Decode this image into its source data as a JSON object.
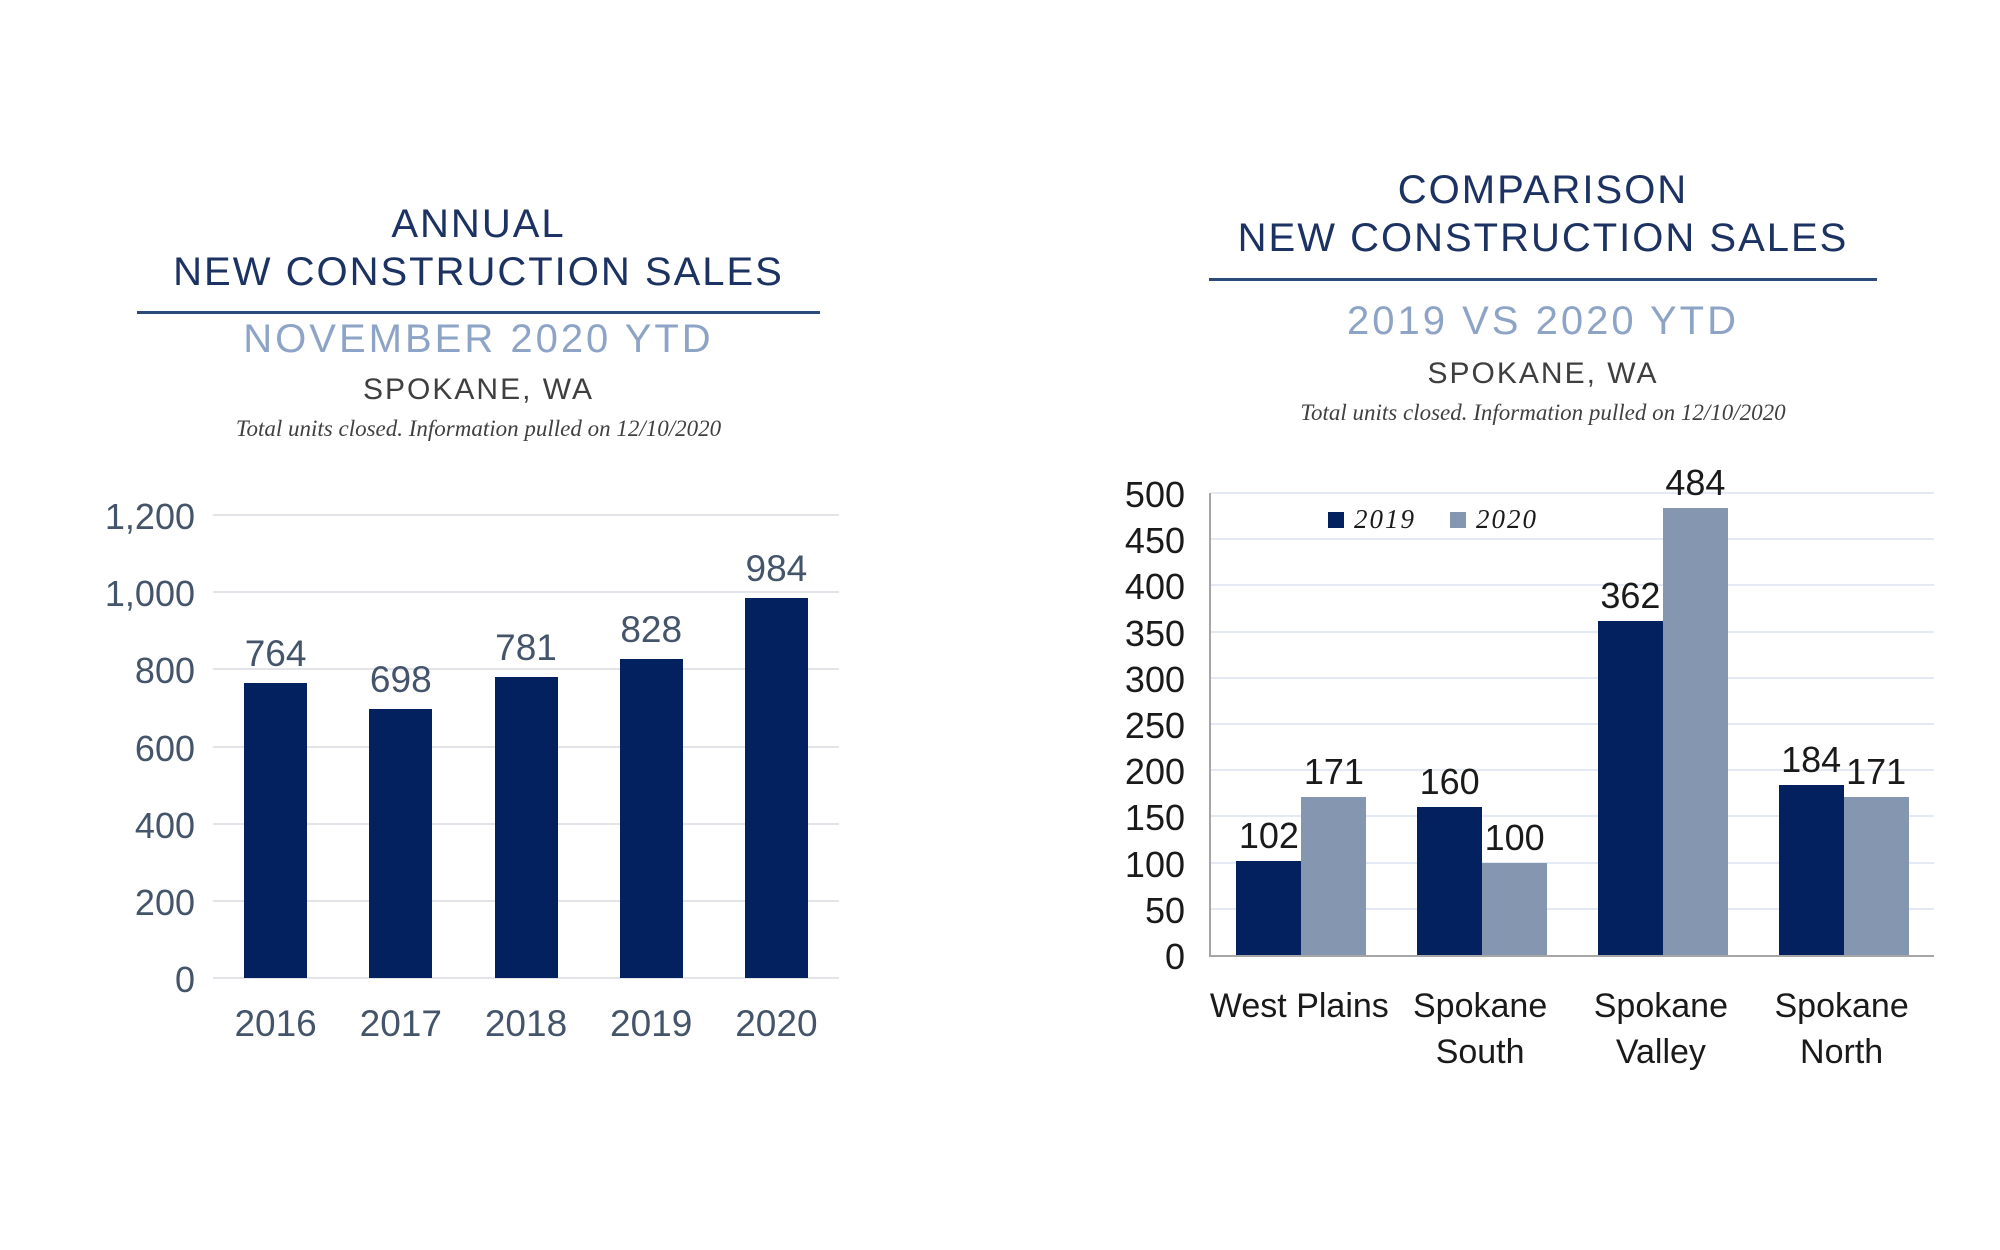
{
  "page": {
    "background": "#FFFFFF"
  },
  "colors": {
    "title_navy": "#1B3262",
    "subtitle_blue": "#8EA4C6",
    "underline": "#2B4A77",
    "text_dark": "#3F3F3F",
    "slate_labels": "#44546A",
    "black_labels": "#1A1A1A",
    "bar_navy": "#03215E",
    "bar_grayblue": "#8496B0",
    "grid_left": "#E2E4EA",
    "grid_right": "#E3E9F5",
    "axis_gray": "#A6A6A6"
  },
  "chart_data": [
    {
      "id": "annual",
      "type": "bar",
      "title_line1": "ANNUAL",
      "title_line2": "NEW CONSTRUCTION SALES",
      "subtitle": "NOVEMBER 2020 YTD",
      "location": "SPOKANE, WA",
      "note": "Total units closed.  Information pulled on 12/10/2020",
      "categories": [
        "2016",
        "2017",
        "2018",
        "2019",
        "2020"
      ],
      "values": [
        764,
        698,
        781,
        828,
        984
      ],
      "bar_color": "#03215E",
      "ylim": [
        0,
        1200
      ],
      "ytick_step": 200,
      "yticks": [
        0,
        200,
        400,
        600,
        800,
        1000,
        1200
      ],
      "ytick_labels": [
        "0",
        "200",
        "400",
        "600",
        "800",
        "1,000",
        "1,200"
      ],
      "grid": true,
      "legend_position": "none",
      "xlabel": "",
      "ylabel": ""
    },
    {
      "id": "comparison",
      "type": "grouped-bar",
      "title_line1": "COMPARISON",
      "title_line2": "NEW CONSTRUCTION SALES",
      "subtitle": "2019 VS 2020 YTD",
      "location": "SPOKANE, WA",
      "note": "Total units closed.  Information pulled on 12/10/2020",
      "categories": [
        "West Plains",
        "Spokane South",
        "Spokane Valley",
        "Spokane North"
      ],
      "categories_display": [
        [
          "West Plains"
        ],
        [
          "Spokane",
          "South"
        ],
        [
          "Spokane",
          "Valley"
        ],
        [
          "Spokane",
          "North"
        ]
      ],
      "series": [
        {
          "name": "2019",
          "color": "#03215E",
          "values": [
            102,
            160,
            362,
            184
          ]
        },
        {
          "name": "2020",
          "color": "#8496B0",
          "values": [
            171,
            100,
            484,
            171
          ]
        }
      ],
      "ylim": [
        0,
        500
      ],
      "ytick_step": 50,
      "yticks": [
        0,
        50,
        100,
        150,
        200,
        250,
        300,
        350,
        400,
        450,
        500
      ],
      "ytick_labels": [
        "0",
        "50",
        "100",
        "150",
        "200",
        "250",
        "300",
        "350",
        "400",
        "450",
        "500"
      ],
      "grid": true,
      "legend_position": "top-inside",
      "xlabel": "",
      "ylabel": ""
    }
  ]
}
